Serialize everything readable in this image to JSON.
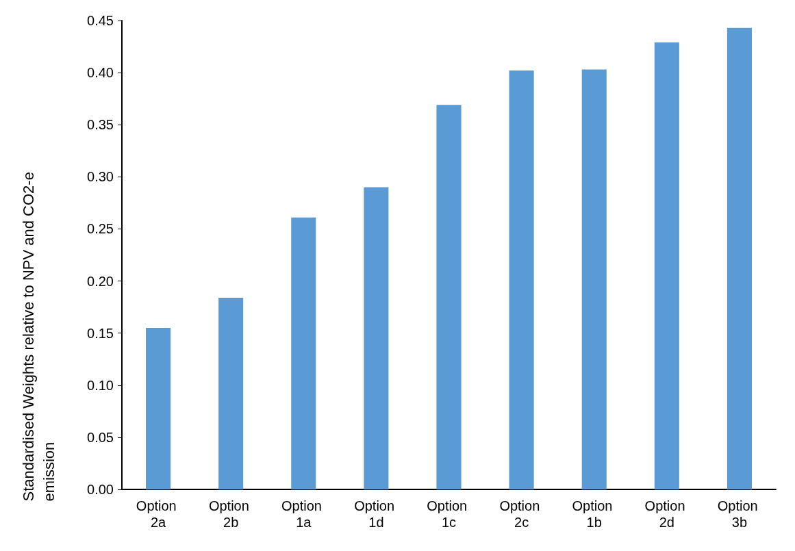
{
  "chart_data": {
    "type": "bar",
    "ylabel": "Standardised Weights relative to NPV and CO2-e emission",
    "categories": [
      "Option 2a",
      "Option 2b",
      "Option 1a",
      "Option 1d",
      "Option 1c",
      "Option 2c",
      "Option 1b",
      "Option 2d",
      "Option 3b"
    ],
    "values": [
      0.155,
      0.184,
      0.261,
      0.29,
      0.369,
      0.402,
      0.403,
      0.429,
      0.443
    ],
    "color": "#5b9bd5",
    "ylim": [
      0,
      0.45
    ],
    "yticks": [
      {
        "value": 0,
        "label": "0.00"
      },
      0.05,
      {
        "value": 0.1,
        "label": "0.10"
      },
      0.15,
      {
        "value": 0.2,
        "label": "0.20"
      },
      0.25,
      {
        "value": 0.3,
        "label": "0.30"
      },
      0.35,
      {
        "value": 0.4,
        "label": "0.40"
      },
      0.45
    ],
    "grid": false
  }
}
